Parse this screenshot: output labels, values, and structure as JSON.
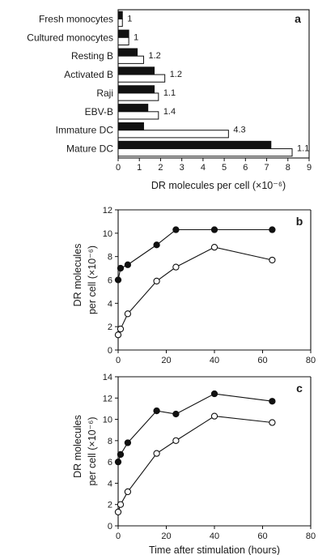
{
  "colors": {
    "filled": "#111111",
    "open": "#ffffff",
    "stroke": "#111111"
  },
  "chart_data": [
    {
      "type": "bar",
      "orientation": "horizontal",
      "panel": "a",
      "categories": [
        "Fresh monocytes",
        "Cultured monocytes",
        "Resting B",
        "Activated B",
        "Raji",
        "EBV-B",
        "Immature DC",
        "Mature DC"
      ],
      "series": [
        {
          "fill": "filled",
          "values": [
            0.2,
            0.5,
            0.9,
            1.7,
            1.7,
            1.4,
            1.2,
            7.2
          ]
        },
        {
          "fill": "open",
          "values": [
            0.2,
            0.5,
            1.2,
            2.2,
            1.9,
            1.9,
            5.2,
            8.2
          ]
        }
      ],
      "ratio_labels": [
        "1",
        "1",
        "1.2",
        "1.2",
        "1.1",
        "1.4",
        "4.3",
        "1.1"
      ],
      "xlabel": "DR molecules per cell (×10⁻⁶)",
      "xticks": [
        "0",
        "1",
        "2",
        "3",
        "4",
        "5",
        "6",
        "7",
        "8",
        "9"
      ],
      "xlim": [
        0,
        9
      ]
    },
    {
      "type": "line",
      "panel": "b",
      "ylabel_line1": "DR molecules",
      "ylabel_line2": "per cell (×10⁻⁶)",
      "xlabel": "",
      "xlim": [
        0,
        80
      ],
      "ylim": [
        0,
        12
      ],
      "xticks": [
        "0",
        "20",
        "40",
        "60",
        "80"
      ],
      "yticks": [
        "0",
        "2",
        "4",
        "6",
        "8",
        "10",
        "12"
      ],
      "series": [
        {
          "marker": "filled",
          "x": [
            0,
            1,
            4,
            16,
            24,
            40,
            64
          ],
          "y": [
            6.0,
            7.0,
            7.3,
            9.0,
            10.3,
            10.3,
            10.3
          ]
        },
        {
          "marker": "open",
          "x": [
            0,
            1,
            4,
            16,
            24,
            40,
            64
          ],
          "y": [
            1.3,
            1.8,
            3.1,
            5.9,
            7.1,
            8.8,
            7.7
          ]
        }
      ]
    },
    {
      "type": "line",
      "panel": "c",
      "ylabel_line1": "DR molecules",
      "ylabel_line2": "per cell (×10⁻⁶)",
      "xlabel": "Time after stimulation (hours)",
      "xlim": [
        0,
        80
      ],
      "ylim": [
        0,
        14
      ],
      "xticks": [
        "0",
        "20",
        "40",
        "60",
        "80"
      ],
      "yticks": [
        "0",
        "2",
        "4",
        "6",
        "8",
        "10",
        "12",
        "14"
      ],
      "series": [
        {
          "marker": "filled",
          "x": [
            0,
            1,
            4,
            16,
            24,
            40,
            64
          ],
          "y": [
            6.0,
            6.7,
            7.8,
            10.8,
            10.5,
            12.4,
            11.7
          ]
        },
        {
          "marker": "open",
          "x": [
            0,
            1,
            4,
            16,
            24,
            40,
            64
          ],
          "y": [
            1.3,
            2.0,
            3.2,
            6.8,
            8.0,
            10.3,
            9.7
          ]
        }
      ]
    }
  ]
}
